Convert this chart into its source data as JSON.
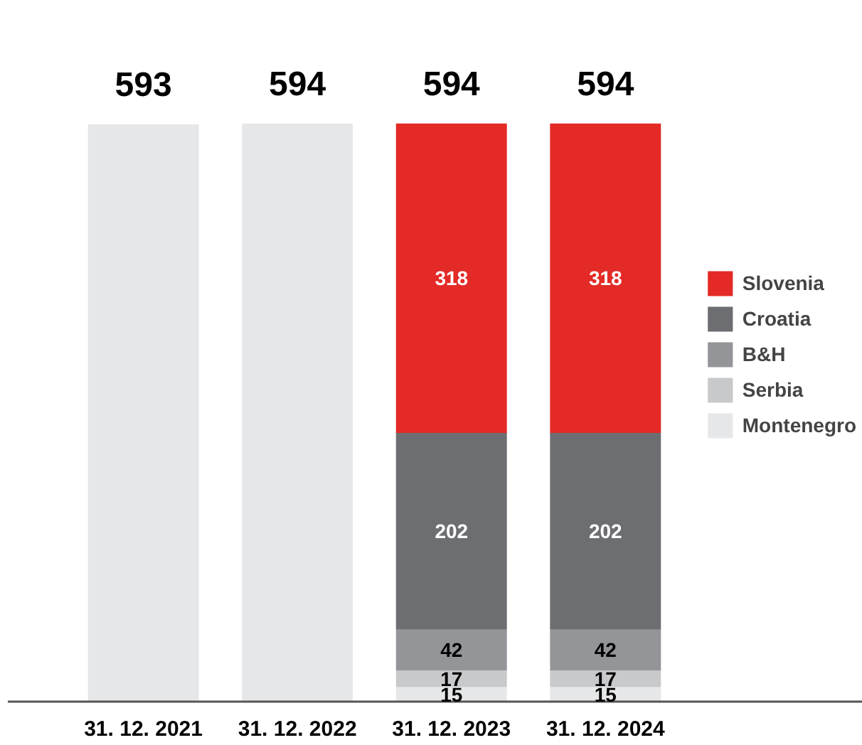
{
  "chart_data": {
    "type": "bar",
    "stacked": true,
    "categories": [
      "31. 12. 2021",
      "31. 12. 2022",
      "31. 12. 2023",
      "31. 12. 2024"
    ],
    "series": [
      {
        "color": "#e6e7e8",
        "values": [
          593,
          594,
          null,
          null
        ]
      },
      {
        "name": "Montenegro",
        "color": "#e6e7e8",
        "values": [
          null,
          null,
          15,
          15
        ],
        "value_labels": [
          null,
          null,
          "15",
          "15"
        ]
      },
      {
        "name": "Serbia",
        "color": "#c8c9cb",
        "values": [
          null,
          null,
          17,
          17
        ],
        "value_labels": [
          null,
          null,
          "17",
          "17"
        ]
      },
      {
        "name": "B&H",
        "color": "#939598",
        "values": [
          null,
          null,
          42,
          42
        ],
        "value_labels": [
          null,
          null,
          "42",
          "42"
        ]
      },
      {
        "name": "Croatia",
        "color": "#6d6e71",
        "values": [
          null,
          null,
          202,
          202
        ],
        "value_labels": [
          null,
          null,
          "202",
          "202"
        ]
      },
      {
        "name": "Slovenia",
        "color": "#e32a26",
        "values": [
          null,
          null,
          318,
          318
        ],
        "value_labels": [
          null,
          null,
          "318",
          "318"
        ]
      }
    ],
    "totals": [
      "593",
      "594",
      "594",
      "594"
    ],
    "legend": "right",
    "grid": false
  }
}
